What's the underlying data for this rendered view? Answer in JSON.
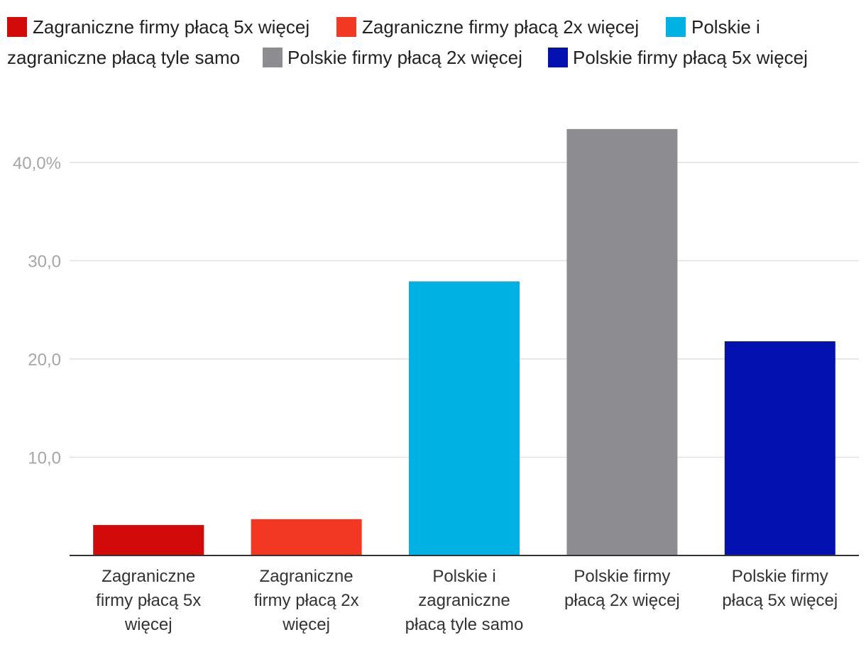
{
  "chart_data": {
    "type": "bar",
    "title": "",
    "xlabel": "",
    "ylabel": "",
    "ylim": [
      0,
      45
    ],
    "grid": true,
    "legend_position": "top",
    "yticks": [
      10,
      20,
      30,
      40
    ],
    "ytick_labels": [
      "10,0",
      "20,0",
      "30,0",
      "40,0%"
    ],
    "categories": [
      "Zagraniczne firmy płacą 5x więcej",
      "Zagraniczne firmy płacą 2x więcej",
      "Polskie i zagraniczne płacą tyle samo",
      "Polskie firmy płacą 2x więcej",
      "Polskie firmy płacą 5x więcej"
    ],
    "category_lines": [
      [
        "Zagraniczne",
        "firmy płacą 5x",
        "więcej"
      ],
      [
        "Zagraniczne",
        "firmy płacą 2x",
        "więcej"
      ],
      [
        "Polskie i",
        "zagraniczne",
        "płacą tyle samo"
      ],
      [
        "Polskie firmy",
        "płacą 2x więcej"
      ],
      [
        "Polskie firmy",
        "płacą 5x więcej"
      ]
    ],
    "values": [
      3.1,
      3.7,
      27.9,
      43.4,
      21.8
    ],
    "colors": [
      "#d20a0a",
      "#f23723",
      "#00b2e3",
      "#8c8c91",
      "#0311b0"
    ],
    "legend": [
      {
        "label": "Zagraniczne firmy płacą 5x więcej",
        "color": "#d20a0a"
      },
      {
        "label": "Zagraniczne firmy płacą 2x więcej",
        "color": "#f23723"
      },
      {
        "label": "Polskie i",
        "cont": "zagraniczne płacą tyle samo",
        "color": "#00b2e3"
      },
      {
        "label": "Polskie firmy płacą 2x więcej",
        "color": "#8c8c91"
      },
      {
        "label": "Polskie firmy płacą 5x więcej",
        "color": "#0311b0"
      }
    ]
  }
}
